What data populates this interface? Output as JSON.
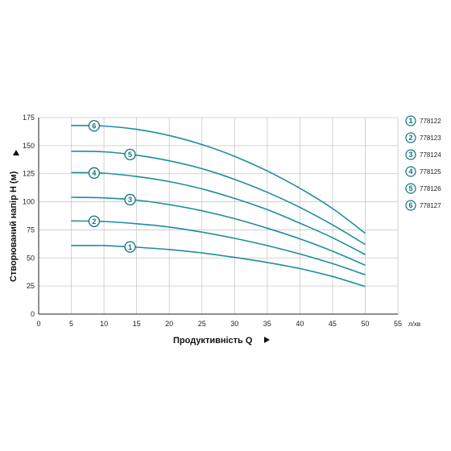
{
  "chart_data": {
    "type": "line",
    "xlabel": "Продуктивність  Q",
    "x_unit": "л/хв",
    "ylabel": "Створюваний напір H (м)",
    "xlim": [
      0,
      55
    ],
    "ylim": [
      0,
      175
    ],
    "x_ticks": [
      "0",
      "5",
      "10",
      "15",
      "20",
      "25",
      "30",
      "35",
      "40",
      "45",
      "50",
      "55"
    ],
    "y_ticks": [
      "0",
      "25",
      "50",
      "75",
      "100",
      "125",
      "150",
      "175"
    ],
    "grid": true,
    "legend_position": "right",
    "colors": {
      "curve": "#1b8ea0",
      "grid": "#c8c8c8",
      "axis": "#222222",
      "badge": "#0f6f7c"
    },
    "series": [
      {
        "id": "1",
        "name": "778122",
        "badge_at_x": 14,
        "x": [
          5,
          10,
          15,
          20,
          25,
          30,
          35,
          40,
          45,
          50
        ],
        "y": [
          61,
          61,
          59.5,
          57.5,
          54.5,
          50.5,
          46,
          40.5,
          33.5,
          24.5
        ]
      },
      {
        "id": "2",
        "name": "778123",
        "badge_at_x": 8.5,
        "x": [
          5,
          10,
          15,
          20,
          25,
          30,
          35,
          40,
          45,
          50
        ],
        "y": [
          83,
          82.5,
          80.5,
          77.5,
          73,
          67.5,
          61,
          53.5,
          45,
          35
        ]
      },
      {
        "id": "3",
        "name": "778124",
        "badge_at_x": 14,
        "x": [
          5,
          10,
          15,
          20,
          25,
          30,
          35,
          40,
          45,
          50
        ],
        "y": [
          104,
          103.5,
          101.5,
          97.5,
          92,
          85,
          76.5,
          67,
          56,
          43.5
        ]
      },
      {
        "id": "4",
        "name": "778125",
        "badge_at_x": 8.5,
        "x": [
          5,
          10,
          15,
          20,
          25,
          30,
          35,
          40,
          45,
          50
        ],
        "y": [
          126,
          125.5,
          122.5,
          118,
          111.5,
          103,
          93,
          81,
          68,
          53
        ]
      },
      {
        "id": "5",
        "name": "778126",
        "badge_at_x": 14,
        "x": [
          5,
          10,
          15,
          20,
          25,
          30,
          35,
          40,
          45,
          50
        ],
        "y": [
          145,
          144.5,
          141.5,
          136.5,
          129.5,
          120,
          108.5,
          95,
          79.5,
          62
        ]
      },
      {
        "id": "6",
        "name": "778127",
        "badge_at_x": 8.5,
        "x": [
          5,
          10,
          15,
          20,
          25,
          30,
          35,
          40,
          45,
          50
        ],
        "y": [
          168,
          167.5,
          164.5,
          159,
          151,
          140.5,
          127.5,
          112,
          94,
          72
        ]
      }
    ]
  }
}
